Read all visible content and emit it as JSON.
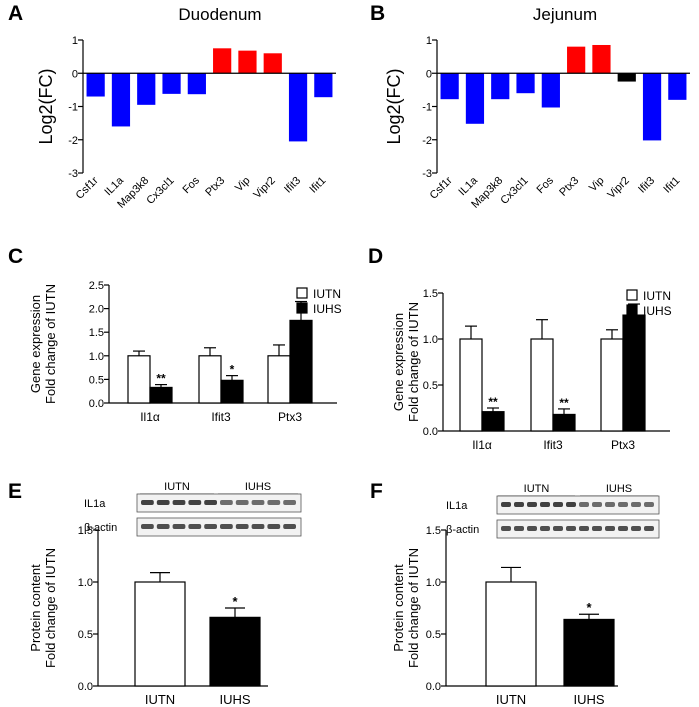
{
  "figure": {
    "panels": [
      {
        "id": "A",
        "letter": "A",
        "kind": "fc",
        "title": "Duodenum",
        "ylabel": "Log2(FC)"
      },
      {
        "id": "B",
        "letter": "B",
        "kind": "fc",
        "title": "Jejunum",
        "ylabel": "Log2(FC)"
      },
      {
        "id": "C",
        "letter": "C",
        "kind": "gene",
        "ylabel": [
          "Gene expression",
          "Fold change of IUTN"
        ]
      },
      {
        "id": "D",
        "letter": "D",
        "kind": "gene",
        "ylabel": [
          "Gene expression",
          "Fold change of IUTN"
        ]
      },
      {
        "id": "E",
        "letter": "E",
        "kind": "protein",
        "ylabel": [
          "Protein content",
          "Fold change of IUTN"
        ]
      },
      {
        "id": "F",
        "letter": "F",
        "kind": "protein",
        "ylabel": [
          "Protein content",
          "Fold change of IUTN"
        ]
      }
    ],
    "colors": {
      "up": "#ff0000",
      "down": "#0000ff",
      "neutral": "#000000",
      "iutn": "#ffffff",
      "iuhs": "#000000"
    }
  },
  "chart_data": [
    {
      "panel": "A",
      "type": "bar",
      "title": "Duodenum",
      "ylabel": "Log2(FC)",
      "categories": [
        "Csf1r",
        "IL1a",
        "Map3k8",
        "Cx3cl1",
        "Fos",
        "Ptx3",
        "Vip",
        "Vipr2",
        "Ifit3",
        "Ifit1"
      ],
      "values": [
        -0.7,
        -1.6,
        -0.95,
        -0.62,
        -0.63,
        0.75,
        0.68,
        0.6,
        -2.05,
        -0.72
      ],
      "bar_colors": [
        "down",
        "down",
        "down",
        "down",
        "down",
        "up",
        "up",
        "up",
        "down",
        "down"
      ],
      "ylim": [
        -3,
        1
      ],
      "yticks": [
        1,
        0,
        -1,
        -2,
        -3
      ]
    },
    {
      "panel": "B",
      "type": "bar",
      "title": "Jejunum",
      "ylabel": "Log2(FC)",
      "categories": [
        "Csf1r",
        "IL1a",
        "Map3k8",
        "Cx3cl1",
        "Fos",
        "Ptx3",
        "Vip",
        "Vipr2",
        "Ifit3",
        "Ifit1"
      ],
      "values": [
        -0.78,
        -1.52,
        -0.78,
        -0.6,
        -1.03,
        0.8,
        0.85,
        -0.25,
        -2.02,
        -0.8
      ],
      "bar_colors": [
        "down",
        "down",
        "down",
        "down",
        "down",
        "up",
        "up",
        "neutral",
        "down",
        "down"
      ],
      "ylim": [
        -3,
        1
      ],
      "yticks": [
        1,
        0,
        -1,
        -2,
        -3
      ]
    },
    {
      "panel": "C",
      "type": "bar",
      "ylabel": "Gene expression Fold change of IUTN",
      "categories": [
        "Il1α",
        "Ifit3",
        "Ptx3"
      ],
      "series": [
        {
          "name": "IUTN",
          "values": [
            1.0,
            1.0,
            1.0
          ],
          "errors": [
            0.1,
            0.17,
            0.23
          ]
        },
        {
          "name": "IUHS",
          "values": [
            0.33,
            0.48,
            1.75
          ],
          "errors": [
            0.06,
            0.1,
            0.4
          ]
        }
      ],
      "significance": [
        "**",
        "*",
        ""
      ],
      "ylim": [
        0,
        2.5
      ],
      "yticks": [
        "0.0",
        "0.5",
        "1.0",
        "1.5",
        "2.0",
        "2.5"
      ],
      "legend": [
        "IUTN",
        "IUHS"
      ]
    },
    {
      "panel": "D",
      "type": "bar",
      "ylabel": "Gene expression Fold change of IUTN",
      "categories": [
        "Il1α",
        "Ifit3",
        "Ptx3"
      ],
      "series": [
        {
          "name": "IUTN",
          "values": [
            1.0,
            1.0,
            1.0
          ],
          "errors": [
            0.14,
            0.21,
            0.1
          ]
        },
        {
          "name": "IUHS",
          "values": [
            0.21,
            0.18,
            1.26
          ],
          "errors": [
            0.04,
            0.06,
            0.12
          ]
        }
      ],
      "significance": [
        "**",
        "**",
        ""
      ],
      "ylim": [
        0,
        1.5
      ],
      "yticks": [
        "0.0",
        "0.5",
        "1.0",
        "1.5"
      ],
      "legend": [
        "IUTN",
        "IUHS"
      ]
    },
    {
      "panel": "E",
      "type": "bar",
      "ylabel": "Protein content Fold change of IUTN",
      "categories": [
        "IUTN",
        "IUHS"
      ],
      "values": [
        1.0,
        0.66
      ],
      "errors": [
        0.09,
        0.09
      ],
      "bar_colors": [
        "iutn",
        "iuhs"
      ],
      "significance": [
        "",
        "*"
      ],
      "ylim": [
        0,
        1.5
      ],
      "yticks": [
        "0.0",
        "0.5",
        "1.0",
        "1.5"
      ],
      "blot": {
        "groups": [
          "IUTN",
          "IUHS"
        ],
        "rows": [
          "IL1a",
          "β-actin"
        ],
        "lanes_per_group": 5
      }
    },
    {
      "panel": "F",
      "type": "bar",
      "ylabel": "Protein content Fold change of IUTN",
      "categories": [
        "IUTN",
        "IUHS"
      ],
      "values": [
        1.0,
        0.64
      ],
      "errors": [
        0.14,
        0.05
      ],
      "bar_colors": [
        "iutn",
        "iuhs"
      ],
      "significance": [
        "",
        "*"
      ],
      "ylim": [
        0,
        1.5
      ],
      "yticks": [
        "0.0",
        "0.5",
        "1.0",
        "1.5"
      ],
      "blot": {
        "groups": [
          "IUTN",
          "IUHS"
        ],
        "rows": [
          "IL1a",
          "β-actin"
        ],
        "lanes_per_group": 6
      }
    }
  ]
}
